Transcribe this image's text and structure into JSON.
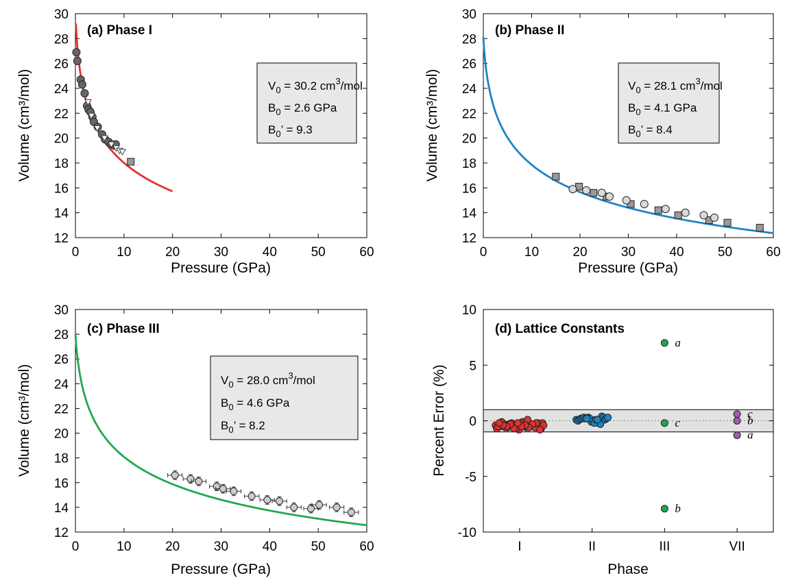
{
  "chart_data": [
    {
      "type": "line",
      "title": "(a) Phase I",
      "xlabel": "Pressure (GPa)",
      "ylabel": "Volume (cm³/mol)",
      "xlim": [
        0,
        60
      ],
      "ylim": [
        12,
        30
      ],
      "xticks": [
        "0",
        "10",
        "20",
        "30",
        "40",
        "50",
        "60"
      ],
      "yticks": [
        "12",
        "14",
        "16",
        "18",
        "20",
        "22",
        "24",
        "26",
        "28",
        "30"
      ],
      "fit": {
        "V0": 30.2,
        "B0": 2.6,
        "B0p": 9.3,
        "x_range": [
          0,
          20
        ],
        "color": "#e0322f"
      },
      "annotation": {
        "v0_label": "V",
        "v0_sub": "0",
        "v0_value": " = 30.2 cm",
        "v0_sup": "3",
        "v0_unit": "/mol",
        "b0_label": "B",
        "b0_sub": "0",
        "b0_value": " = 2.6 GPa",
        "b0p_label": "B",
        "b0p_sub": "0",
        "b0p_value": "’ = 9.3"
      },
      "series": [
        {
          "marker": "circle",
          "color": "#666666",
          "x": [
            0.2,
            0.4,
            1.1,
            1.4,
            1.9,
            2.4,
            2.7,
            3.1,
            3.5,
            3.8,
            4.6,
            5.5,
            6.1,
            6.8,
            7.4,
            8.0,
            8.3
          ],
          "y": [
            26.9,
            26.2,
            24.7,
            24.3,
            23.6,
            22.6,
            22.3,
            22.1,
            21.7,
            21.3,
            20.9,
            20.3,
            19.9,
            19.7,
            19.5,
            19.4,
            19.5
          ]
        },
        {
          "marker": "triangle-down",
          "color": "#ffffff",
          "x": [
            2.6,
            3.3,
            4.5,
            6.0,
            7.4,
            8.4,
            9.1,
            9.7
          ],
          "y": [
            22.9,
            21.8,
            20.8,
            20.0,
            19.5,
            19.2,
            19.0,
            18.9
          ]
        },
        {
          "marker": "square",
          "color": "#999999",
          "x": [
            11.4
          ],
          "y": [
            18.1
          ]
        }
      ]
    },
    {
      "type": "line",
      "title": "(b) Phase II",
      "xlabel": "Pressure (GPa)",
      "ylabel": "Volume (cm³/mol)",
      "xlim": [
        0,
        60
      ],
      "ylim": [
        12,
        30
      ],
      "xticks": [
        "0",
        "10",
        "20",
        "30",
        "40",
        "50",
        "60"
      ],
      "yticks": [
        "12",
        "14",
        "16",
        "18",
        "20",
        "22",
        "24",
        "26",
        "28",
        "30"
      ],
      "fit": {
        "V0": 28.1,
        "B0": 4.1,
        "B0p": 8.4,
        "x_range": [
          0,
          60
        ],
        "color": "#1b84c4"
      },
      "annotation": {
        "v0_label": "V",
        "v0_sub": "0",
        "v0_value": " = 28.1 cm",
        "v0_sup": "3",
        "v0_unit": "/mol",
        "b0_label": "B",
        "b0_sub": "0",
        "b0_value": " = 4.1 GPa",
        "b0p_label": "B",
        "b0p_sub": "0",
        "b0p_value": "’ = 8.4"
      },
      "series": [
        {
          "marker": "square",
          "color": "#999999",
          "x": [
            15.0,
            19.8,
            22.8,
            25.5,
            30.5,
            36.2,
            40.3,
            46.7,
            50.5,
            57.2
          ],
          "y": [
            16.9,
            16.1,
            15.6,
            15.3,
            14.7,
            14.2,
            13.8,
            13.4,
            13.2,
            12.8
          ]
        },
        {
          "marker": "circle",
          "color": "#d9d9d9",
          "x": [
            18.5,
            21.3,
            24.5,
            26.1,
            29.6,
            33.3,
            37.7,
            41.8,
            45.6,
            47.8
          ],
          "y": [
            15.9,
            15.8,
            15.6,
            15.3,
            15.0,
            14.7,
            14.3,
            14.0,
            13.8,
            13.6
          ]
        }
      ]
    },
    {
      "type": "line",
      "title": "(c) Phase III",
      "xlabel": "Pressure (GPa)",
      "ylabel": "Volume (cm³/mol)",
      "xlim": [
        0,
        60
      ],
      "ylim": [
        12,
        30
      ],
      "xticks": [
        "0",
        "10",
        "20",
        "30",
        "40",
        "50",
        "60"
      ],
      "yticks": [
        "12",
        "14",
        "16",
        "18",
        "20",
        "22",
        "24",
        "26",
        "28",
        "30"
      ],
      "fit": {
        "V0": 28.0,
        "B0": 4.6,
        "B0p": 8.2,
        "x_range": [
          0,
          60
        ],
        "color": "#1fa84a"
      },
      "annotation": {
        "v0_label": "V",
        "v0_sub": "0",
        "v0_value": " = 28.0 cm",
        "v0_sup": "3",
        "v0_unit": "/mol",
        "b0_label": "B",
        "b0_sub": "0",
        "b0_value": " = 4.6 GPa",
        "b0p_label": "B",
        "b0p_sub": "0",
        "b0p_value": "’ = 8.2"
      },
      "series": [
        {
          "marker": "circle-errorbar",
          "color": "#cccccc",
          "x": [
            20.5,
            23.7,
            25.4,
            29.1,
            30.4,
            32.6,
            36.3,
            39.5,
            42.0,
            45.0,
            48.5,
            50.2,
            53.8,
            56.8
          ],
          "y": [
            16.6,
            16.3,
            16.1,
            15.7,
            15.5,
            15.3,
            14.9,
            14.6,
            14.5,
            14.0,
            13.9,
            14.2,
            14.0,
            13.6
          ],
          "xerr": 1.5,
          "yerr": 0.35
        }
      ]
    },
    {
      "type": "scatter",
      "title": "(d) Lattice Constants",
      "xlabel": "Phase",
      "ylabel": "Percent Error (%)",
      "ylim": [
        -10,
        10
      ],
      "categories": [
        "I",
        "II",
        "III",
        "VII"
      ],
      "yticks": [
        "10",
        "5",
        "0",
        "-5",
        "-10"
      ],
      "band": [
        -1,
        1
      ],
      "groups": [
        {
          "category": "I",
          "color": "#e0322f",
          "values": [
            -0.4,
            -0.7,
            -0.2,
            -0.5,
            -0.3,
            -0.6,
            -0.1,
            -0.8,
            -0.4,
            -0.2,
            -0.6,
            -0.3,
            -0.5,
            -0.7,
            -0.2,
            -0.4,
            -0.6,
            -0.3,
            0.1,
            -0.5,
            -0.2,
            -0.7,
            -0.4,
            -0.3,
            -0.6,
            -0.1,
            -0.5,
            -0.4,
            -0.8,
            -0.2,
            -0.3,
            -0.6,
            -0.4,
            -0.5,
            -0.2,
            -0.7,
            -0.3,
            -0.5,
            -0.4,
            -0.2
          ]
        },
        {
          "category": "II",
          "color": "#1b84c4",
          "values": [
            0.1,
            -0.2,
            0.3,
            0.0,
            -0.3,
            0.2,
            0.1,
            0.4,
            -0.1,
            0.2,
            0.3,
            0.0,
            0.2,
            0.1,
            -0.2,
            0.3,
            0.2,
            0.1,
            0.2,
            0.3,
            0.1,
            0.2
          ]
        },
        {
          "category": "III",
          "color": "#1fa84a",
          "values": [
            7.0,
            -0.2,
            -7.9
          ],
          "labels": [
            "a",
            "c",
            "b"
          ]
        },
        {
          "category": "VII",
          "color": "#a45ab4",
          "values": [
            0.6,
            0.0,
            -1.3
          ],
          "labels": [
            "c",
            "b",
            "a"
          ]
        }
      ]
    }
  ]
}
